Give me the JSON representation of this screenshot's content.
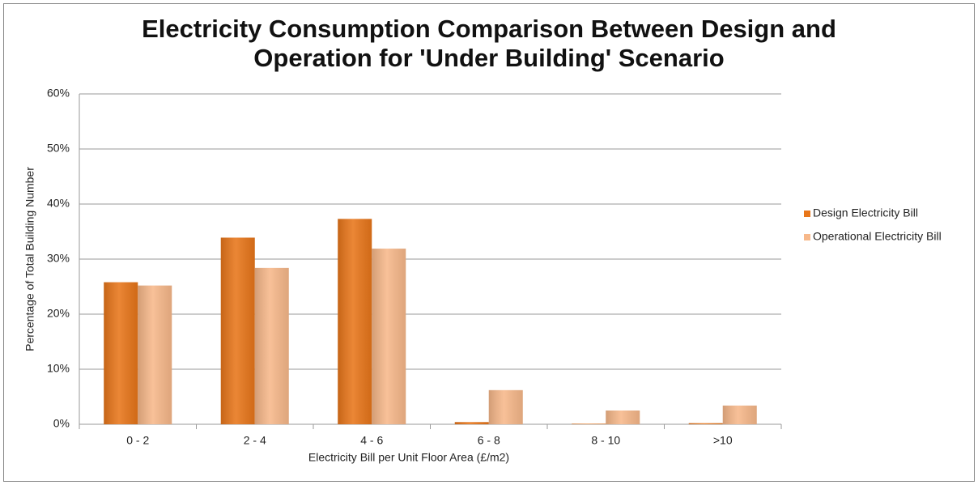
{
  "chart_data": {
    "type": "bar",
    "title": "Electricity Consumption Comparison Between Design and\nOperation for 'Under Building' Scenario",
    "x_label": "Electricity Bill per Unit Floor Area (£/m2)",
    "y_label": "Percentage of Total Building Number",
    "categories": [
      "0 - 2",
      "2 - 4",
      "4 - 6",
      "6 - 8",
      "8 - 10",
      ">10"
    ],
    "series": [
      {
        "name": "Design Electricity Bill",
        "color": "#e8761a",
        "values": [
          25.8,
          33.9,
          37.3,
          0.4,
          0.1,
          0.2
        ]
      },
      {
        "name": "Operational Electricity Bill",
        "color": "#f7b88a",
        "values": [
          25.2,
          28.4,
          31.9,
          6.2,
          2.5,
          3.4
        ]
      }
    ],
    "ylim": [
      0,
      60
    ],
    "yticks": [
      {
        "value": 0,
        "label": "0%"
      },
      {
        "value": 10,
        "label": "10%"
      },
      {
        "value": 20,
        "label": "20%"
      },
      {
        "value": 30,
        "label": "30%"
      },
      {
        "value": 40,
        "label": "40%"
      },
      {
        "value": 50,
        "label": "50%"
      },
      {
        "value": 60,
        "label": "60%"
      }
    ],
    "grid": true,
    "legend": "right"
  }
}
